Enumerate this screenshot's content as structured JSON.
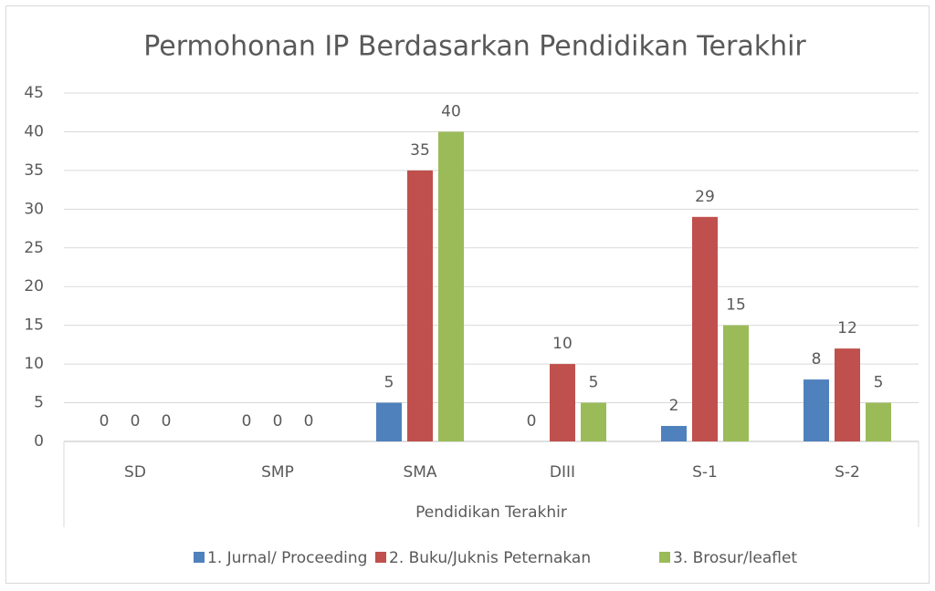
{
  "chart_data": {
    "type": "bar",
    "title": "Permohonan IP Berdasarkan Pendidikan Terakhir",
    "x_label": "Pendidikan Terakhir",
    "categories": [
      "SD",
      "SMP",
      "SMA",
      "DIII",
      "S-1",
      "S-2"
    ],
    "series": [
      {
        "name": "1. Jurnal/ Proceeding",
        "color": "#4f81bd",
        "values": [
          0,
          0,
          5,
          0,
          2,
          8
        ]
      },
      {
        "name": "2. Buku/Juknis Peternakan",
        "color": "#c0504d",
        "values": [
          0,
          0,
          35,
          10,
          29,
          12
        ]
      },
      {
        "name": "3. Brosur/leaflet",
        "color": "#9bbb59",
        "values": [
          0,
          0,
          40,
          5,
          15,
          5
        ]
      }
    ],
    "ylim": [
      0,
      45
    ],
    "yticks": [
      0,
      5,
      10,
      15,
      20,
      25,
      30,
      35,
      40,
      45
    ],
    "grid": true,
    "legend": "bottom"
  }
}
